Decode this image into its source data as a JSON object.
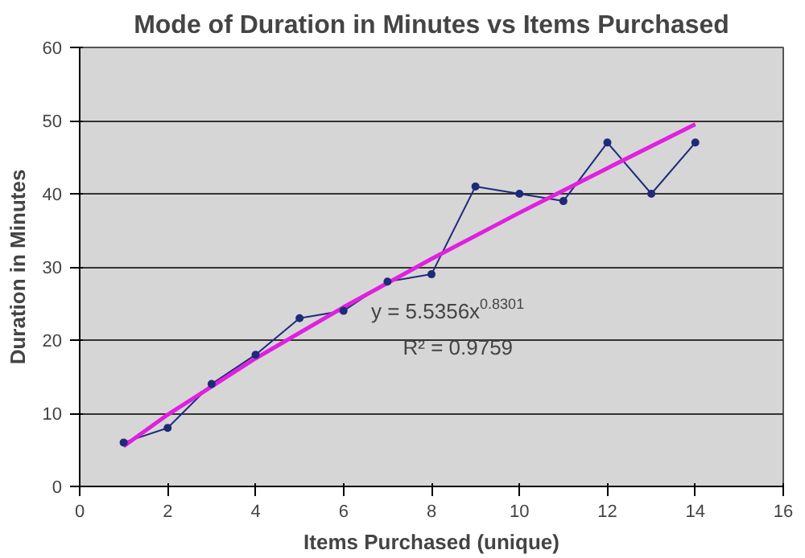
{
  "chart_data": {
    "type": "line",
    "title": "Mode of Duration in Minutes vs Items Purchased",
    "xlabel": "Items Purchased (unique)",
    "ylabel": "Duration in Minutes",
    "x": [
      1,
      2,
      3,
      4,
      5,
      6,
      7,
      8,
      9,
      10,
      11,
      12,
      13,
      14
    ],
    "series": [
      {
        "color": "#1f2a7a",
        "marker": "circle",
        "values": [
          6,
          8,
          14,
          18,
          23,
          24,
          28,
          29,
          41,
          40,
          39,
          47,
          40,
          47
        ]
      },
      {
        "type": "line",
        "color": "#e020e0",
        "marker": "none",
        "x": [
          1,
          2,
          4,
          6,
          8,
          10,
          12,
          14
        ],
        "values": [
          5.5,
          9.8,
          17.5,
          24.5,
          31.1,
          37.4,
          43.5,
          49.5
        ]
      }
    ],
    "annotations": [
      "y = 5.5356x$^{0.8301}$",
      "R² = 0.9759"
    ],
    "xlim": [
      0,
      16
    ],
    "xticks": [
      0,
      2,
      4,
      6,
      8,
      10,
      12,
      14,
      16
    ],
    "ylim": [
      0,
      60
    ],
    "yticks": [
      0,
      10,
      20,
      30,
      40,
      50,
      60
    ],
    "grid": "y"
  }
}
